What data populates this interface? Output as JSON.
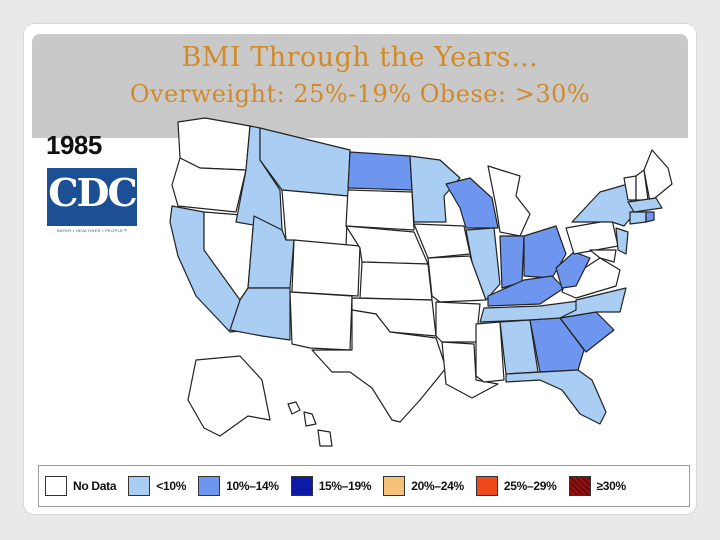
{
  "slide": {
    "title": "BMI Through the Years…",
    "subtitle": "Overweight: 25%-19% Obese: >30%"
  },
  "map": {
    "year": "1985",
    "logo_text": "CDC",
    "logo_tagline": "SAFER • HEALTHIER • PEOPLE™"
  },
  "colors": {
    "no_data": "#ffffff",
    "lt10": "#a9cdf3",
    "r10_14": "#6f96ee",
    "r15_19": "#0d1aa8",
    "r20_24": "#f6c27a",
    "r25_29": "#ee4a1c",
    "ge30": "#9b1010"
  },
  "legend": {
    "items": [
      {
        "label": "No Data",
        "color": "#ffffff"
      },
      {
        "label": "<10%",
        "color": "#a9cdf3"
      },
      {
        "label": "10%–14%",
        "color": "#6f96ee"
      },
      {
        "label": "15%–19%",
        "color": "#0d1aa8"
      },
      {
        "label": "20%–24%",
        "color": "#f6c27a"
      },
      {
        "label": "25%–29%",
        "color": "#ee4a1c"
      },
      {
        "label": "≥30%",
        "color": "#9b1010"
      }
    ]
  }
}
